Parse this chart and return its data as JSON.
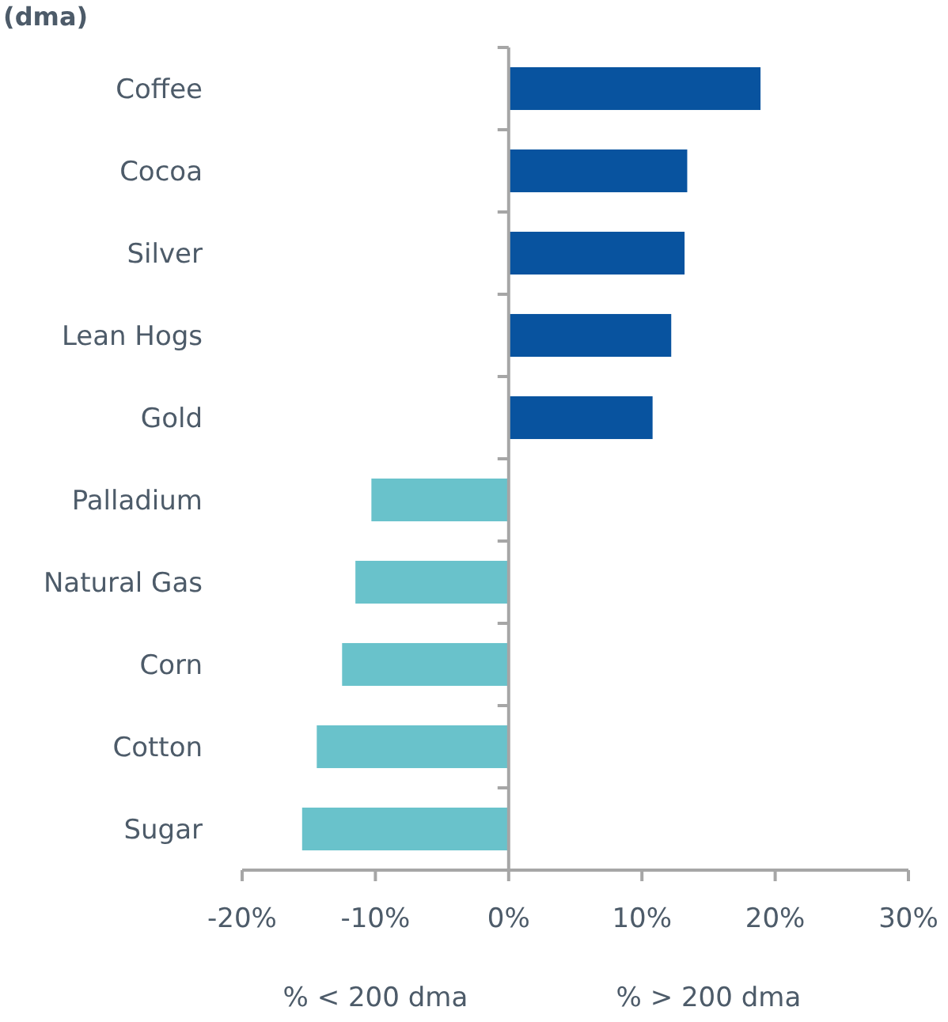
{
  "chart_data": {
    "type": "bar",
    "orientation": "horizontal",
    "title": "(dma)",
    "categories": [
      "Coffee",
      "Cocoa",
      "Silver",
      "Lean Hogs",
      "Gold",
      "Palladium",
      "Natural Gas",
      "Corn",
      "Cotton",
      "Sugar"
    ],
    "values": [
      18.9,
      13.4,
      13.2,
      12.2,
      10.8,
      -10.3,
      -11.5,
      -12.5,
      -14.4,
      -15.5
    ],
    "colors": [
      "#08539f",
      "#08539f",
      "#08539f",
      "#08539f",
      "#08539f",
      "#69c2cb",
      "#69c2cb",
      "#69c2cb",
      "#69c2cb",
      "#69c2cb"
    ],
    "xlim": [
      -20,
      30
    ],
    "xticks": [
      {
        "value": -20,
        "label": "-20%"
      },
      {
        "value": -10,
        "label": "-10%"
      },
      {
        "value": 0,
        "label": "0%"
      },
      {
        "value": 10,
        "label": "10%"
      },
      {
        "value": 20,
        "label": "20%"
      },
      {
        "value": 30,
        "label": "30%"
      }
    ],
    "annotations": [
      "% < 200 dma",
      "% > 200 dma"
    ]
  }
}
